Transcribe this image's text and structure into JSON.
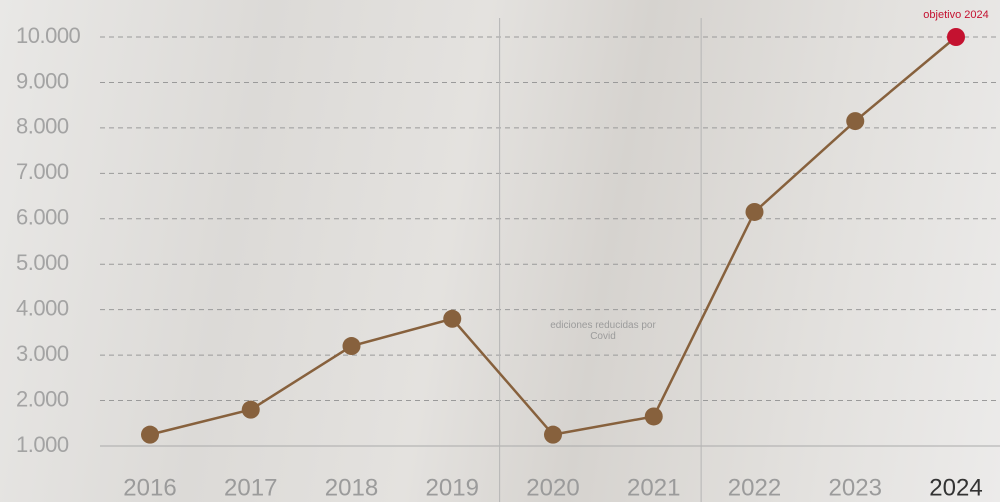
{
  "chart_data": {
    "type": "line",
    "categories": [
      "2016",
      "2017",
      "2018",
      "2019",
      "2020",
      "2021",
      "2022",
      "2023",
      "2024"
    ],
    "values": [
      1250,
      1800,
      3200,
      3800,
      1250,
      1650,
      6150,
      8150,
      10000
    ],
    "color": "#87613d",
    "highlight_color": "#c41230",
    "highlight_label": "objetivo 2024",
    "annotation": "ediciones reducidas por Covid",
    "ylim": [
      1000,
      10000
    ],
    "yticks": [
      {
        "value": 1000,
        "label": "1.000"
      },
      {
        "value": 2000,
        "label": "2.000"
      },
      {
        "value": 3000,
        "label": "3.000"
      },
      {
        "value": 4000,
        "label": "4.000"
      },
      {
        "value": 5000,
        "label": "5.000"
      },
      {
        "value": 6000,
        "label": "6.000"
      },
      {
        "value": 7000,
        "label": "7.000"
      },
      {
        "value": 8000,
        "label": "8.000"
      },
      {
        "value": 9000,
        "label": "9.000"
      },
      {
        "value": 10000,
        "label": "10.000"
      }
    ],
    "grid": true
  }
}
